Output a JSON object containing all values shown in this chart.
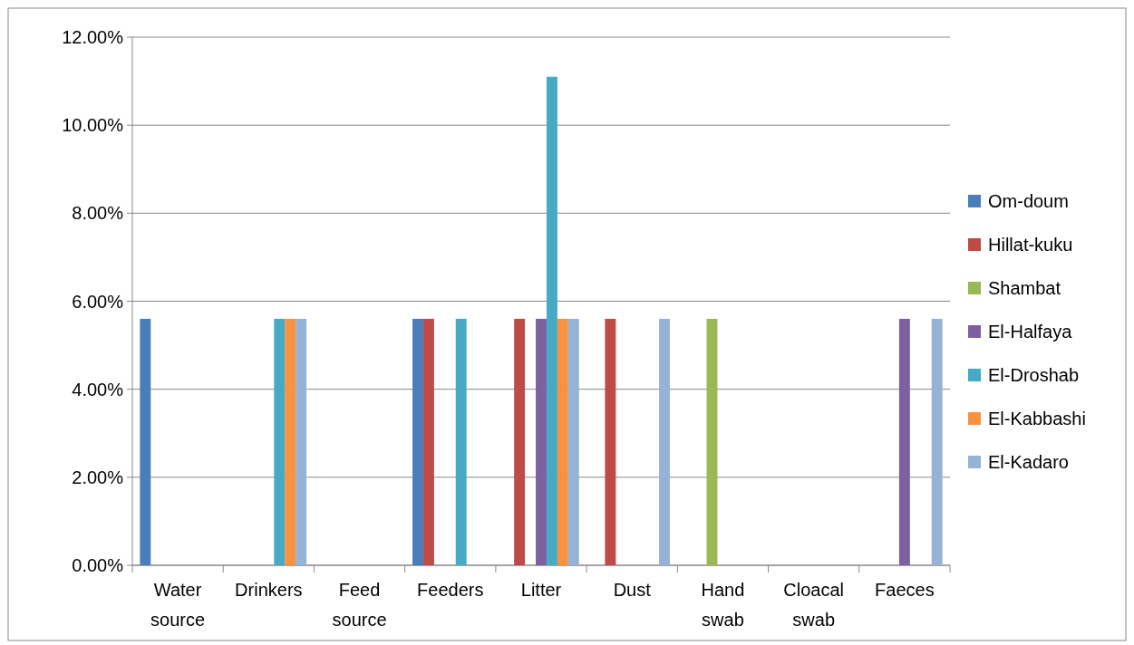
{
  "chart_data": {
    "type": "bar",
    "categories": [
      "Water source",
      "Drinkers",
      "Feed source",
      "Feeders",
      "Litter",
      "Dust",
      "Hand swab",
      "Cloacal swab",
      "Faeces"
    ],
    "series": [
      {
        "name": "Om-doum",
        "color": "#4a7ebb",
        "values": [
          5.6,
          0,
          0,
          5.6,
          0,
          0,
          0,
          0,
          0
        ]
      },
      {
        "name": "Hillat-kuku",
        "color": "#be4b48",
        "values": [
          0,
          0,
          0,
          5.6,
          5.6,
          5.6,
          0,
          0,
          0
        ]
      },
      {
        "name": "Shambat",
        "color": "#98b954",
        "values": [
          0,
          0,
          0,
          0,
          0,
          0,
          5.6,
          0,
          0
        ]
      },
      {
        "name": "El-Halfaya",
        "color": "#7d60a0",
        "values": [
          0,
          0,
          0,
          0,
          5.6,
          0,
          0,
          0,
          5.6
        ]
      },
      {
        "name": "El-Droshab",
        "color": "#46aac5",
        "values": [
          0,
          5.6,
          0,
          5.6,
          11.1,
          0,
          0,
          0,
          0
        ]
      },
      {
        "name": "El-Kabbashi",
        "color": "#f69240",
        "values": [
          0,
          5.6,
          0,
          0,
          5.6,
          0,
          0,
          0,
          0
        ]
      },
      {
        "name": "El-Kadaro",
        "color": "#95b3d7",
        "values": [
          0,
          5.6,
          0,
          0,
          5.6,
          5.6,
          0,
          0,
          5.6
        ]
      }
    ],
    "ylim": [
      0,
      12
    ],
    "yticks": [
      {
        "value": 0,
        "label": "0.00%"
      },
      {
        "value": 2,
        "label": "2.00%"
      },
      {
        "value": 4,
        "label": "4.00%"
      },
      {
        "value": 6,
        "label": "6.00%"
      },
      {
        "value": 8,
        "label": "8.00%"
      },
      {
        "value": 10,
        "label": "10.00%"
      },
      {
        "value": 12,
        "label": "12.00%"
      }
    ],
    "grid": "y",
    "legend": "right"
  }
}
